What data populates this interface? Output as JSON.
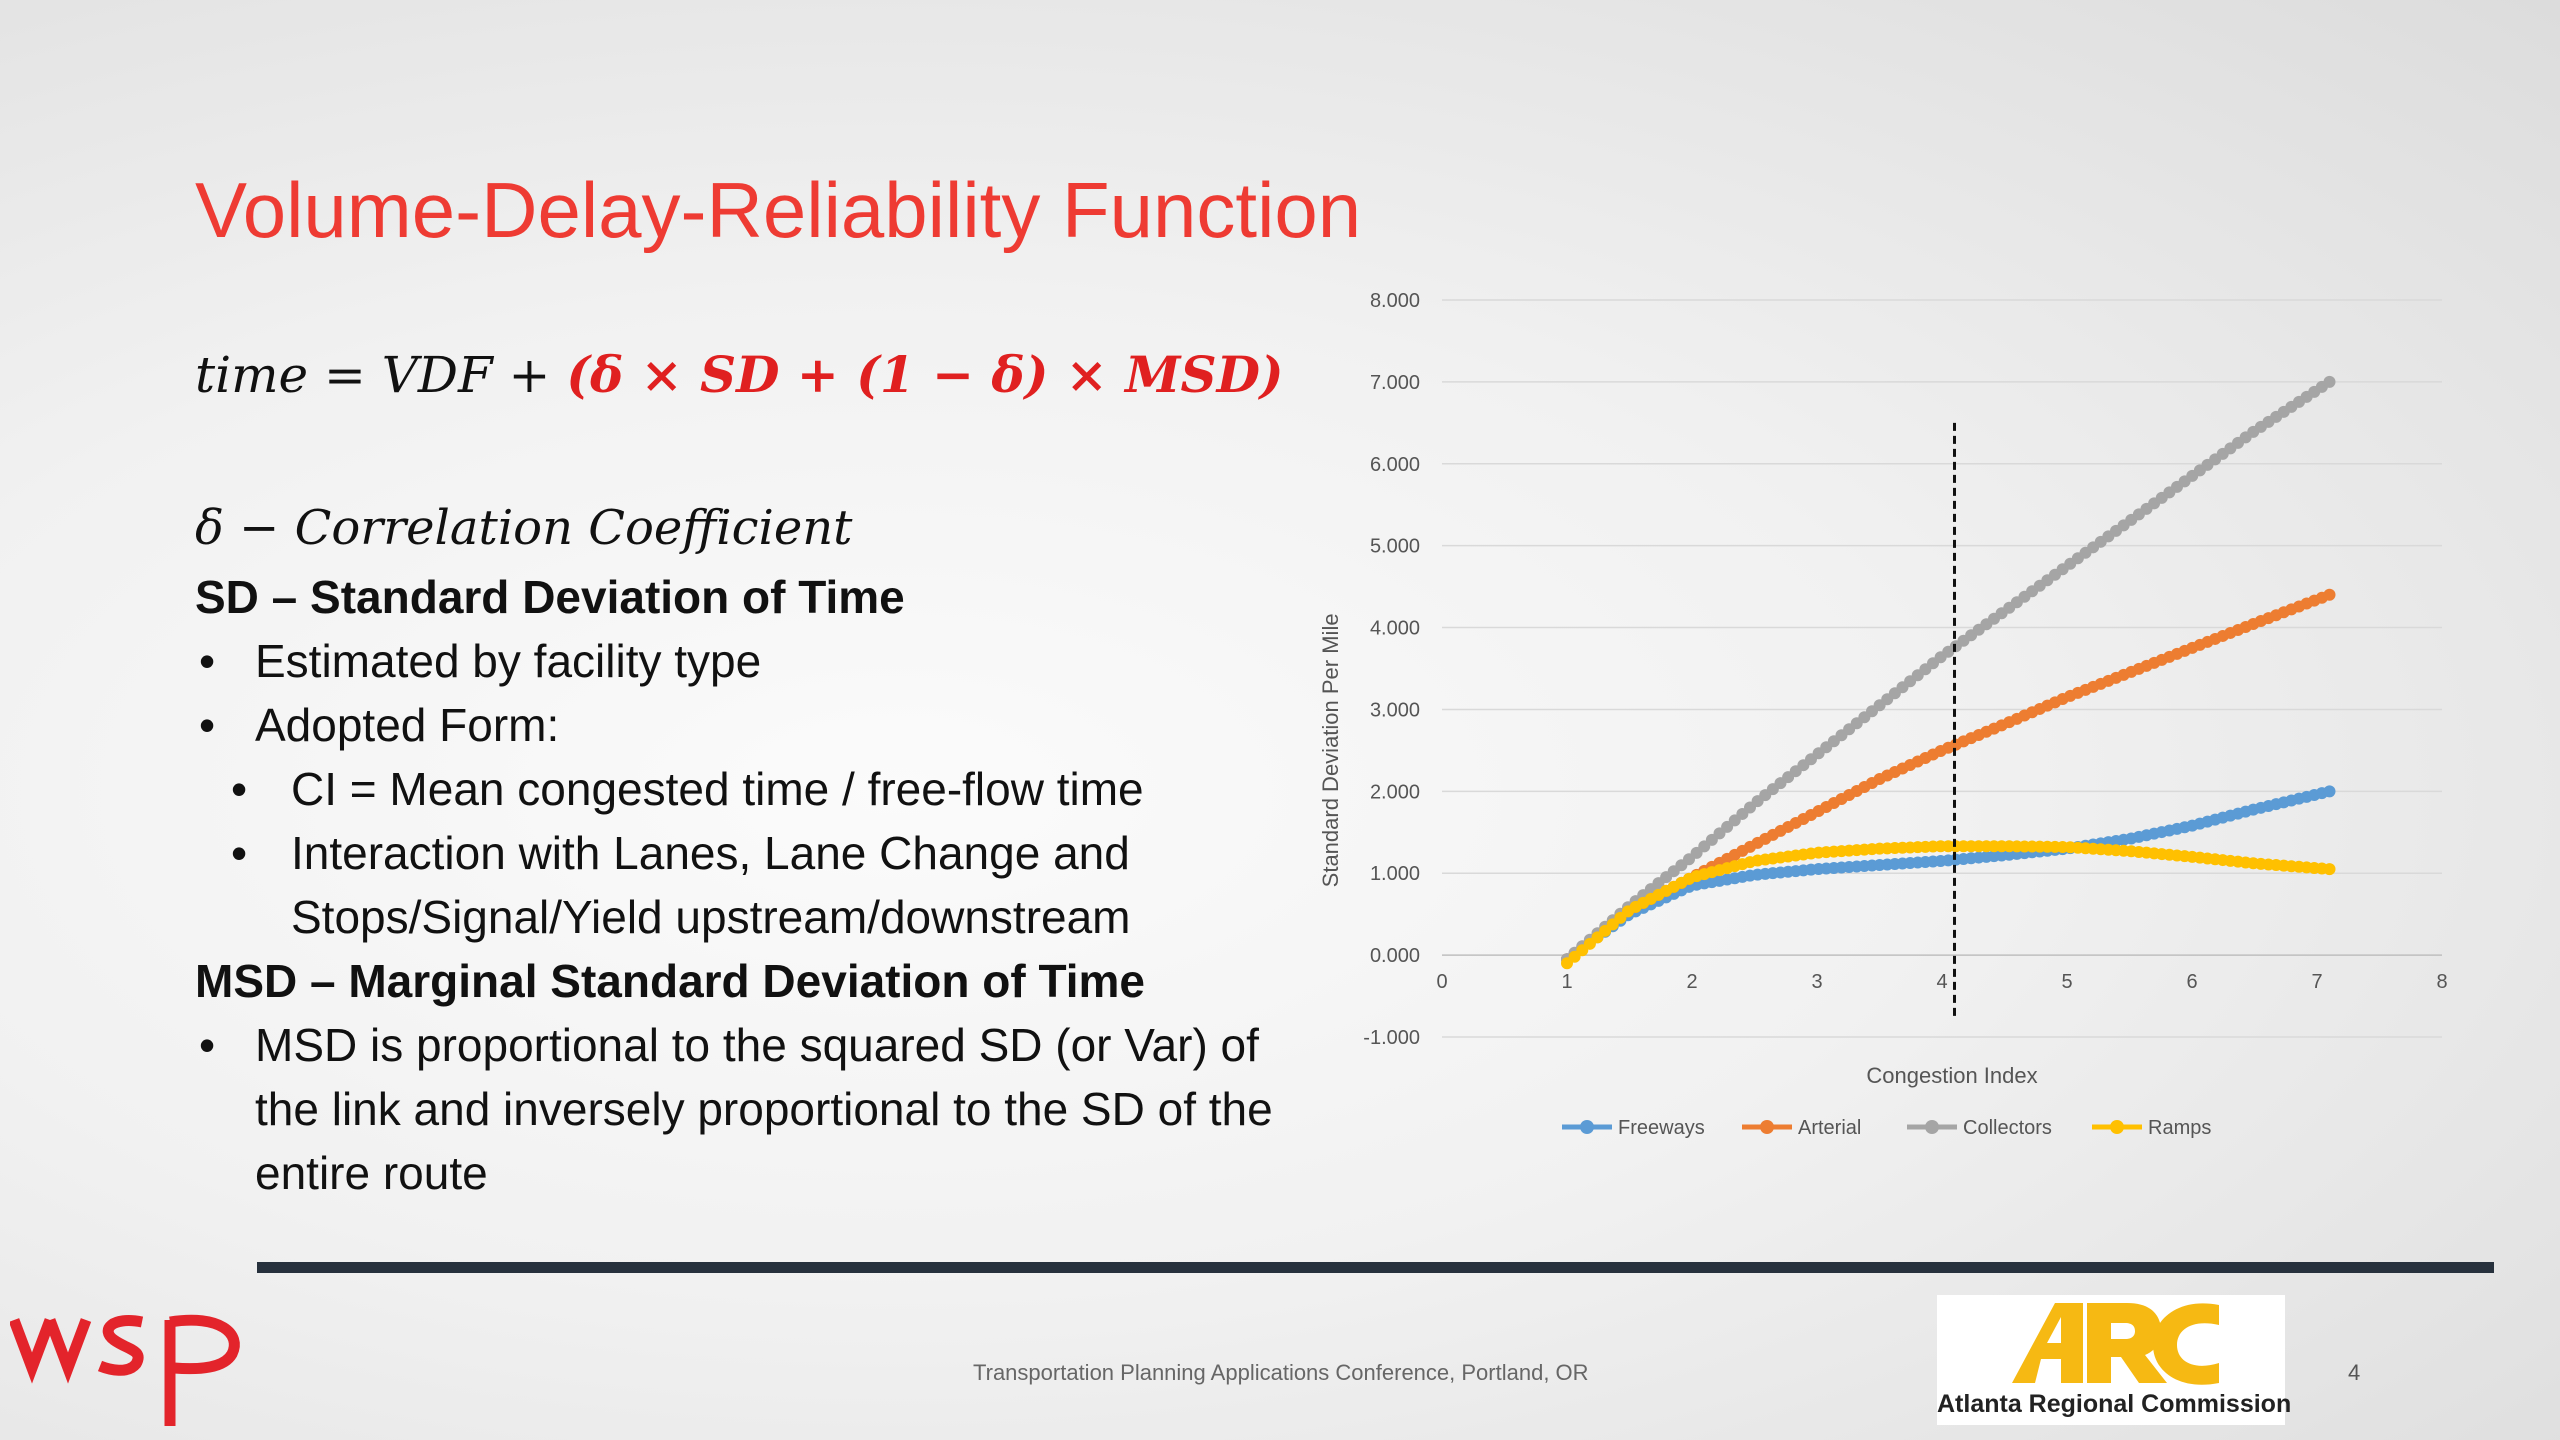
{
  "slide": {
    "title": "Volume-Delay-Reliability Function",
    "formula": {
      "lhs": "time = VDF + ",
      "rhs": "(δ × SD + (1 − δ) × MSD)"
    },
    "delta_def": "δ  − Correlation Coefficient",
    "sd_heading": "SD – Standard Deviation of Time",
    "sd_bullets": [
      "Estimated by facility type",
      "Adopted Form:"
    ],
    "sd_sub_bullets": [
      "CI = Mean congested time / free-flow time",
      "Interaction with Lanes, Lane Change and Stops/Signal/Yield upstream/downstream"
    ],
    "msd_heading": "MSD – Marginal Standard Deviation of Time",
    "msd_bullets": [
      "MSD is proportional to the squared SD (or Var) of the link and inversely proportional to the SD of the entire route"
    ],
    "footer": "Transportation Planning Applications Conference, Portland, OR",
    "page_number": "4",
    "arc_label": "Atlanta Regional Commission",
    "colors": {
      "title": "#ee3b33",
      "formula_highlight": "#e02020",
      "wsp_logo": "#e3242b",
      "arc_logo": "#f6b913"
    }
  },
  "chart_data": {
    "type": "scatter",
    "xlabel": "Congestion Index",
    "ylabel": "Standard Deviation Per Mile",
    "xlim": [
      0,
      8
    ],
    "ylim": [
      -1,
      8
    ],
    "x_ticks": [
      0,
      1,
      2,
      3,
      4,
      5,
      6,
      7,
      8
    ],
    "y_ticks": [
      -1,
      0,
      1,
      2,
      3,
      4,
      5,
      6,
      7,
      8
    ],
    "x_tick_labels": [
      "0",
      "1",
      "2",
      "3",
      "4",
      "5",
      "6",
      "7",
      "8"
    ],
    "y_tick_labels": [
      "-1.000",
      "0.000",
      "1.000",
      "2.000",
      "3.000",
      "4.000",
      "5.000",
      "6.000",
      "7.000",
      "8.000"
    ],
    "legend_position": "bottom",
    "vertical_marker": {
      "x": 4.1,
      "style": "dashed",
      "color": "#111111"
    },
    "series": [
      {
        "name": "Freeways",
        "color": "#5b9bd5",
        "x": [
          1,
          1.5,
          2,
          2.5,
          3,
          3.5,
          4,
          4.5,
          5,
          5.5,
          6,
          6.5,
          7.1
        ],
        "y": [
          -0.05,
          0.5,
          0.85,
          0.98,
          1.05,
          1.1,
          1.15,
          1.22,
          1.3,
          1.42,
          1.58,
          1.78,
          2.0
        ]
      },
      {
        "name": "Arterial",
        "color": "#ed7d31",
        "x": [
          1,
          1.5,
          2,
          2.5,
          3,
          3.5,
          4,
          4.5,
          5,
          5.5,
          6,
          6.5,
          7.1
        ],
        "y": [
          -0.05,
          0.55,
          0.95,
          1.35,
          1.75,
          2.15,
          2.5,
          2.82,
          3.15,
          3.45,
          3.75,
          4.05,
          4.4
        ]
      },
      {
        "name": "Collectors",
        "color": "#a5a5a5",
        "x": [
          1,
          1.5,
          2,
          2.5,
          3,
          3.5,
          4,
          4.5,
          5,
          5.5,
          6,
          6.5,
          7.1
        ],
        "y": [
          -0.05,
          0.6,
          1.2,
          1.85,
          2.45,
          3.05,
          3.65,
          4.2,
          4.75,
          5.3,
          5.85,
          6.4,
          7.0
        ]
      },
      {
        "name": "Ramps",
        "color": "#ffc000",
        "x": [
          1,
          1.5,
          2,
          2.5,
          3,
          3.5,
          4,
          4.5,
          5,
          5.5,
          6,
          6.5,
          7.1
        ],
        "y": [
          -0.1,
          0.55,
          0.95,
          1.15,
          1.25,
          1.3,
          1.33,
          1.33,
          1.32,
          1.27,
          1.2,
          1.12,
          1.05
        ]
      }
    ]
  }
}
